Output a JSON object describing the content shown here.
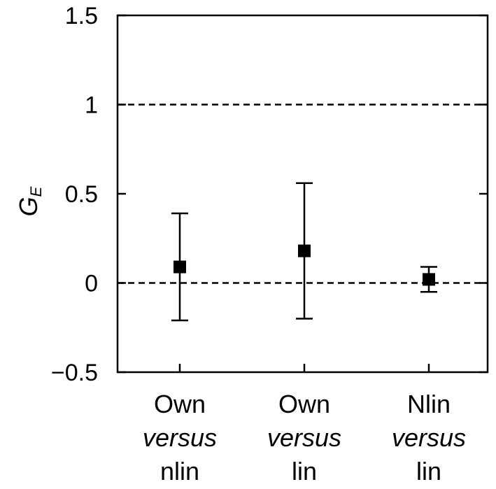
{
  "chart_data": {
    "type": "scatter",
    "title": "",
    "ylabel": "G",
    "ylabel_subscript": "E",
    "ylim": [
      -0.5,
      1.5
    ],
    "yticks": [
      -0.5,
      0,
      0.5,
      1,
      1.5
    ],
    "ytick_labels": [
      "−0.5",
      "0",
      "0.5",
      "1",
      "1.5"
    ],
    "reference_lines": [
      1,
      0
    ],
    "categories": [
      {
        "line1": "Own",
        "line2": "versus",
        "line3": "nlin"
      },
      {
        "line1": "Own",
        "line2": "versus",
        "line3": "lin"
      },
      {
        "line1": "Nlin",
        "line2": "versus",
        "line3": "lin"
      }
    ],
    "values": [
      0.09,
      0.18,
      0.02
    ],
    "error_low": [
      -0.21,
      -0.2,
      -0.05
    ],
    "error_high": [
      0.39,
      0.56,
      0.09
    ],
    "marker_color": "#000000",
    "grid": false
  }
}
